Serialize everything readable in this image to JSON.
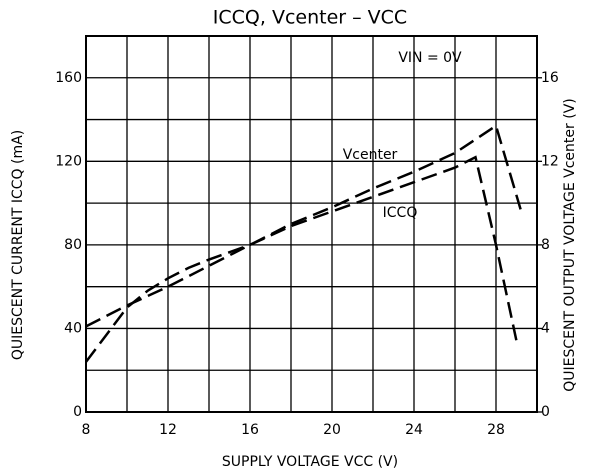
{
  "chart_data": {
    "type": "line",
    "title": "ICCQ, Vcenter – VCC",
    "xlabel": "SUPPLY VOLTAGE   VCC   (V)",
    "ylabel": "QUIESCENT CURRENT   ICCQ   (mA)",
    "y2label": "QUIESCENT OUTPUT VOLTAGE   Vcenter   (V)",
    "annotation": "VIN = 0V",
    "xlim": [
      8,
      30
    ],
    "xticks": [
      8,
      12,
      16,
      20,
      24,
      28
    ],
    "xminor_ticks": [
      10,
      14,
      18,
      22,
      26,
      30
    ],
    "ylim": [
      0,
      180
    ],
    "yticks": [
      0,
      40,
      80,
      120,
      160
    ],
    "yminor_ticks": [
      20,
      60,
      100,
      140,
      180
    ],
    "y2lim": [
      0,
      18
    ],
    "y2ticks": [
      0,
      4,
      8,
      12,
      16
    ],
    "grid": true,
    "series": [
      {
        "name": "ICCQ",
        "color": "#000000",
        "axis": "y",
        "x": [
          8,
          9,
          10,
          11,
          12,
          13,
          14,
          16,
          18,
          20,
          22,
          24,
          26,
          27,
          28,
          29
        ],
        "values": [
          24,
          37,
          50,
          58,
          64,
          69,
          73,
          80,
          89,
          96,
          103,
          110,
          117,
          122,
          80,
          34
        ]
      },
      {
        "name": "Vcenter",
        "color": "#000000",
        "axis": "y2",
        "x": [
          8,
          10,
          12,
          14,
          16,
          18,
          20,
          22,
          24,
          26,
          28,
          29.2
        ],
        "values": [
          4.1,
          5.1,
          6.0,
          7.0,
          8.0,
          9.0,
          9.8,
          10.7,
          11.5,
          12.4,
          13.7,
          9.7
        ]
      }
    ]
  }
}
